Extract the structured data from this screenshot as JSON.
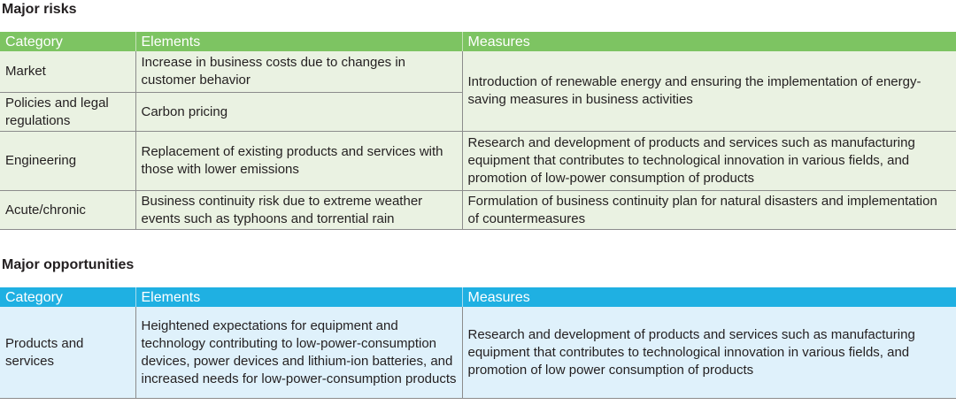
{
  "risks": {
    "title": "Major risks",
    "headers": {
      "category": "Category",
      "elements": "Elements",
      "measures": "Measures"
    },
    "colors": {
      "header_bg": "#7dc462",
      "row_bg": "#eaf2e2"
    },
    "rows": [
      {
        "category": "Market",
        "elements": "Increase in business costs due to changes in customer behavior"
      },
      {
        "category": "Policies and legal regulations",
        "elements": "Carbon pricing"
      },
      {
        "category": "Engineering",
        "elements": "Replacement of existing products and services with those with lower emissions",
        "measures": "Research and development of products and services such as manufacturing equipment that contributes to technological innovation in various fields, and promotion of low-power consumption of products"
      },
      {
        "category": "Acute/chronic",
        "elements": "Business continuity risk due to extreme weather events such as typhoons and torrential rain",
        "measures": "Formulation of business continuity plan for natural disasters and implementation of countermeasures"
      }
    ],
    "shared_measure": "Introduction of renewable energy and ensuring the implementation of energy-saving measures in business activities"
  },
  "opportunities": {
    "title": "Major opportunities",
    "headers": {
      "category": "Category",
      "elements": "Elements",
      "measures": "Measures"
    },
    "colors": {
      "header_bg": "#1fb0e2",
      "row_bg": "#dff1fb"
    },
    "rows": [
      {
        "category": "Products and services",
        "elements": "Heightened expectations for equipment and technology contributing to low-power-consumption devices, power devices and lithium-ion batteries, and increased needs for low-power-consumption products",
        "measures": "Research and development of products and services such as manufacturing equipment that contributes to technological innovation in various fields, and promotion of low power consumption of products"
      }
    ]
  }
}
